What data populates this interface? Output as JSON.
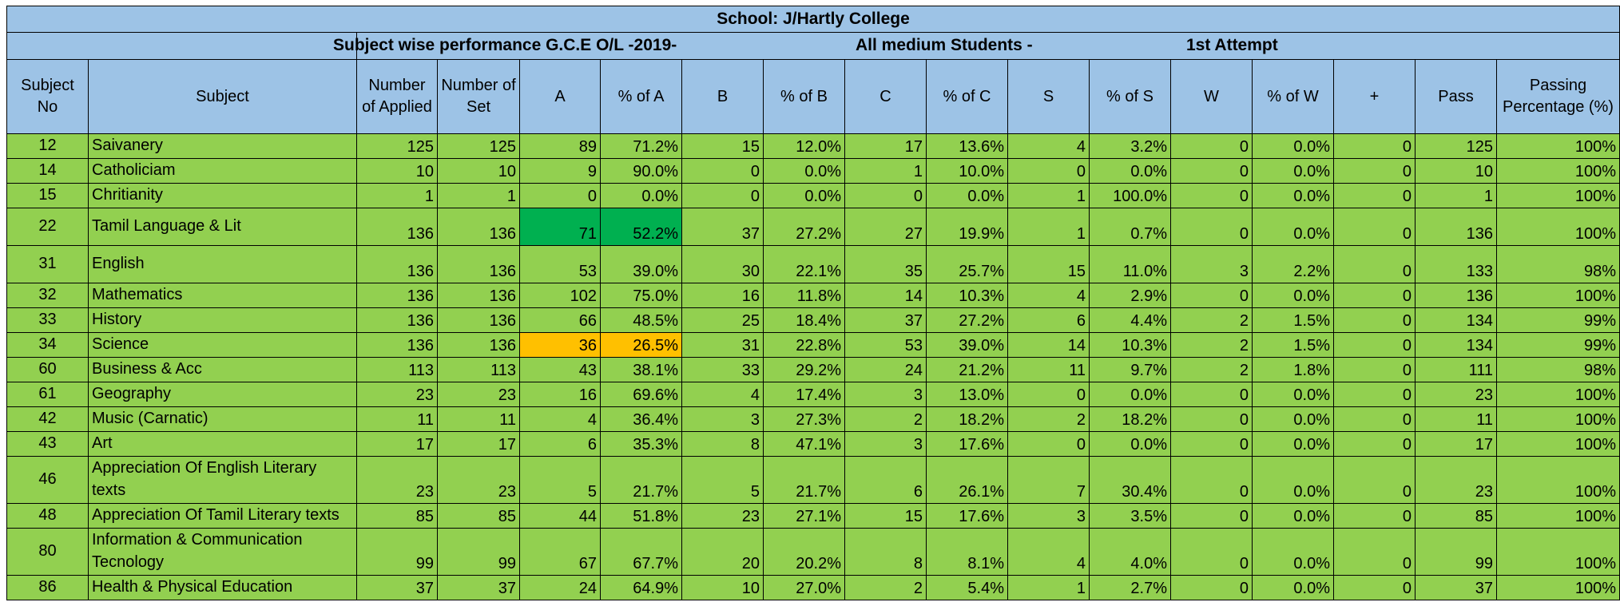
{
  "sheet": {
    "school_title": "School: J/Hartly College",
    "subtitle_perf": "Subject wise performance G.C.E O/L -2019-",
    "subtitle_medium": "All medium Students -",
    "subtitle_attempt": "1st Attempt",
    "columns": [
      "Subject No",
      "Subject",
      "Number of Applied",
      "Number of Set",
      "A",
      "% of A",
      "B",
      "% of B",
      "C",
      "% of C",
      "S",
      "% of S",
      "W",
      "% of W",
      "+",
      "Pass",
      "Passing Percentage (%)"
    ],
    "rows": [
      [
        "12",
        "Saivanery",
        "125",
        "125",
        "89",
        "71.2%",
        "15",
        "12.0%",
        "17",
        "13.6%",
        "4",
        "3.2%",
        "0",
        "0.0%",
        "0",
        "125",
        "100%"
      ],
      [
        "14",
        "Catholiciam",
        "10",
        "10",
        "9",
        "90.0%",
        "0",
        "0.0%",
        "1",
        "10.0%",
        "0",
        "0.0%",
        "0",
        "0.0%",
        "0",
        "10",
        "100%"
      ],
      [
        "15",
        "Chritianity",
        "1",
        "1",
        "0",
        "0.0%",
        "0",
        "0.0%",
        "0",
        "0.0%",
        "1",
        "100.0%",
        "0",
        "0.0%",
        "0",
        "1",
        "100%"
      ],
      [
        "22",
        "Tamil Language & Lit",
        "136",
        "136",
        "71",
        "52.2%",
        "37",
        "27.2%",
        "27",
        "19.9%",
        "1",
        "0.7%",
        "0",
        "0.0%",
        "0",
        "136",
        "100%"
      ],
      [
        "31",
        "English",
        "136",
        "136",
        "53",
        "39.0%",
        "30",
        "22.1%",
        "35",
        "25.7%",
        "15",
        "11.0%",
        "3",
        "2.2%",
        "0",
        "133",
        "98%"
      ],
      [
        "32",
        "Mathematics",
        "136",
        "136",
        "102",
        "75.0%",
        "16",
        "11.8%",
        "14",
        "10.3%",
        "4",
        "2.9%",
        "0",
        "0.0%",
        "0",
        "136",
        "100%"
      ],
      [
        "33",
        "History",
        "136",
        "136",
        "66",
        "48.5%",
        "25",
        "18.4%",
        "37",
        "27.2%",
        "6",
        "4.4%",
        "2",
        "1.5%",
        "0",
        "134",
        "99%"
      ],
      [
        "34",
        "Science",
        "136",
        "136",
        "36",
        "26.5%",
        "31",
        "22.8%",
        "53",
        "39.0%",
        "14",
        "10.3%",
        "2",
        "1.5%",
        "0",
        "134",
        "99%"
      ],
      [
        "60",
        "Business & Acc",
        "113",
        "113",
        "43",
        "38.1%",
        "33",
        "29.2%",
        "24",
        "21.2%",
        "11",
        "9.7%",
        "2",
        "1.8%",
        "0",
        "111",
        "98%"
      ],
      [
        "61",
        "Geography",
        "23",
        "23",
        "16",
        "69.6%",
        "4",
        "17.4%",
        "3",
        "13.0%",
        "0",
        "0.0%",
        "0",
        "0.0%",
        "0",
        "23",
        "100%"
      ],
      [
        "42",
        "Music (Carnatic)",
        "11",
        "11",
        "4",
        "36.4%",
        "3",
        "27.3%",
        "2",
        "18.2%",
        "2",
        "18.2%",
        "0",
        "0.0%",
        "0",
        "11",
        "100%"
      ],
      [
        "43",
        "Art",
        "17",
        "17",
        "6",
        "35.3%",
        "8",
        "47.1%",
        "3",
        "17.6%",
        "0",
        "0.0%",
        "0",
        "0.0%",
        "0",
        "17",
        "100%"
      ],
      [
        "46",
        "Appreciation Of English Literary texts",
        "23",
        "23",
        "5",
        "21.7%",
        "5",
        "21.7%",
        "6",
        "26.1%",
        "7",
        "30.4%",
        "0",
        "0.0%",
        "0",
        "23",
        "100%"
      ],
      [
        "48",
        "Appreciation Of Tamil Literary texts",
        "85",
        "85",
        "44",
        "51.8%",
        "23",
        "27.1%",
        "15",
        "17.6%",
        "3",
        "3.5%",
        "0",
        "0.0%",
        "0",
        "85",
        "100%"
      ],
      [
        "80",
        "Information & Communication Tecnology",
        "99",
        "99",
        "67",
        "67.7%",
        "20",
        "20.2%",
        "8",
        "8.1%",
        "4",
        "4.0%",
        "0",
        "0.0%",
        "0",
        "99",
        "100%"
      ],
      [
        "86",
        "Health & Physical Education",
        "37",
        "37",
        "24",
        "64.9%",
        "10",
        "27.0%",
        "2",
        "5.4%",
        "1",
        "2.7%",
        "0",
        "0.0%",
        "0",
        "37",
        "100%"
      ]
    ],
    "highlights": {
      "green": [
        [
          3,
          4
        ],
        [
          3,
          5
        ]
      ],
      "orange": [
        [
          7,
          4
        ],
        [
          7,
          5
        ]
      ]
    },
    "colors": {
      "header_blue": "#9dc3e6",
      "row_green": "#92d050",
      "highlight_green": "#00b050",
      "highlight_orange": "#ffc000"
    }
  }
}
